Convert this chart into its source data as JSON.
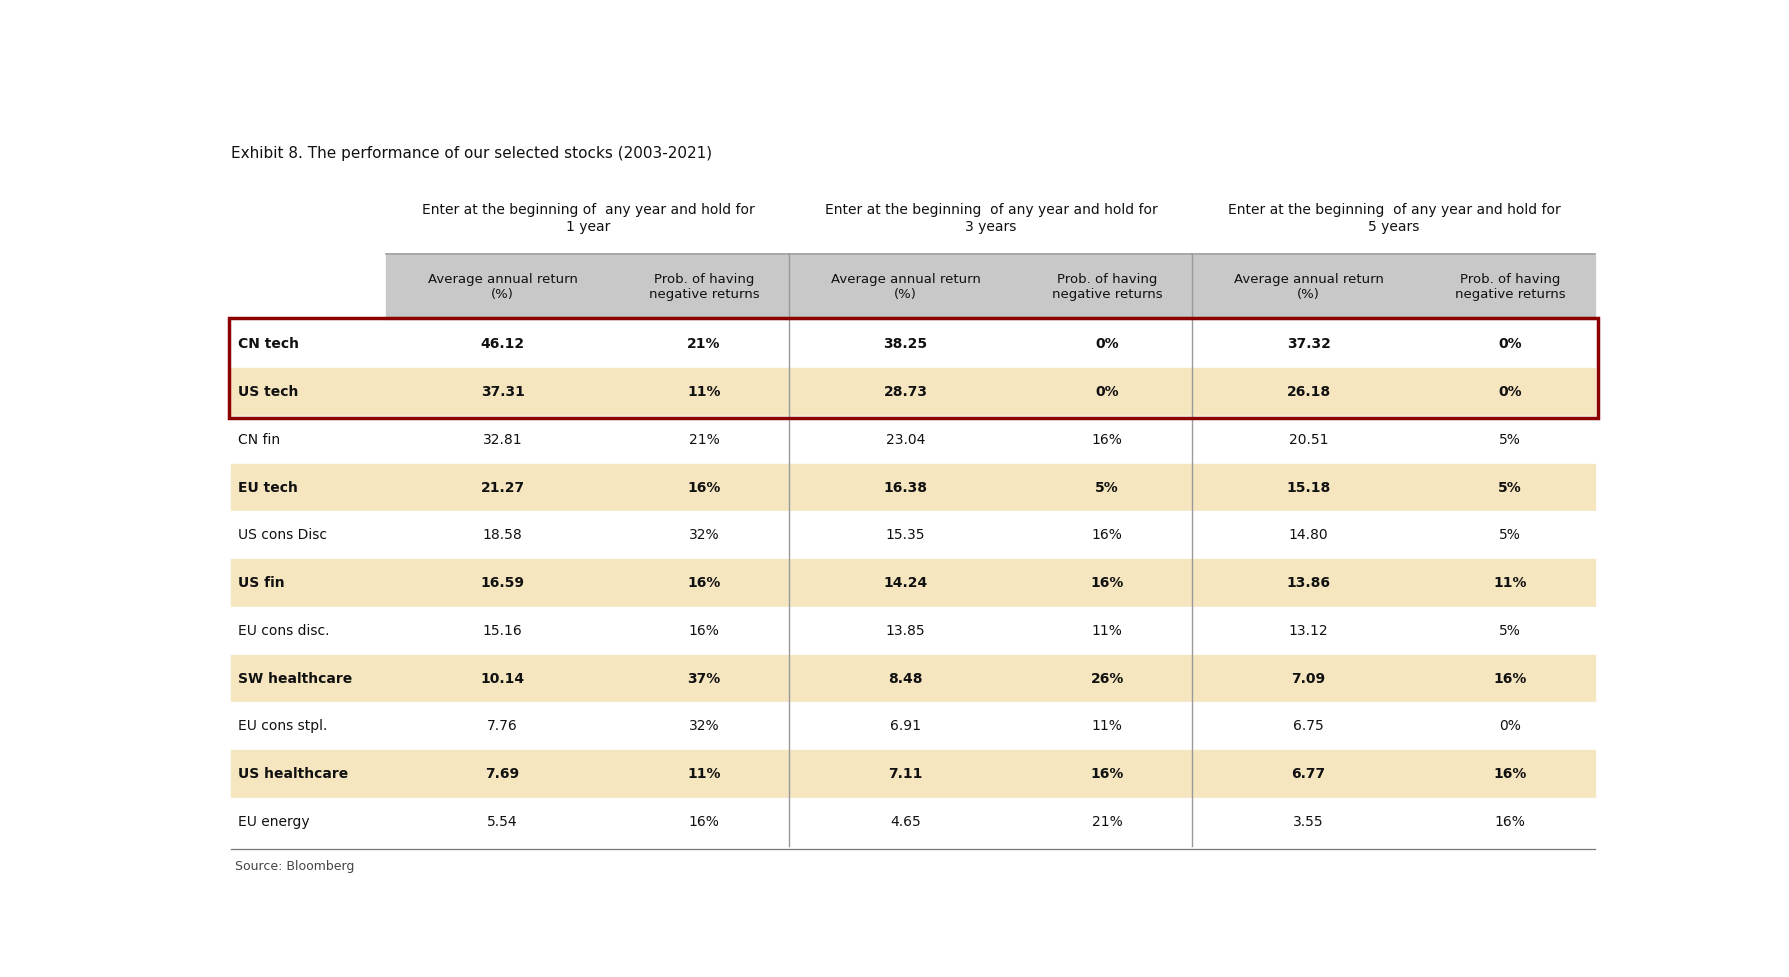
{
  "title": "Exhibit 8. The performance of our selected stocks (2003-2021)",
  "source": "Source: Bloomberg",
  "group_headers": [
    "Enter at the beginning of  any year and hold for\n1 year",
    "Enter at the beginning  of any year and hold for\n3 years",
    "Enter at the beginning  of any year and hold for\n5 years"
  ],
  "col_headers": [
    "Average annual return\n(%)",
    "Prob. of having\nnegative returns",
    "Average annual return\n(%)",
    "Prob. of having\nnegative returns",
    "Average annual return\n(%)",
    "Prob. of having\nnegative returns"
  ],
  "rows": [
    {
      "label": "CN tech",
      "bold": false,
      "highlight": "red_box",
      "bg": "#FFFFFF",
      "values": [
        "46.12",
        "21%",
        "38.25",
        "0%",
        "37.32",
        "0%"
      ]
    },
    {
      "label": "US tech",
      "bold": false,
      "highlight": "red_box",
      "bg": "#F5E6C0",
      "values": [
        "37.31",
        "11%",
        "28.73",
        "0%",
        "26.18",
        "0%"
      ]
    },
    {
      "label": "CN fin",
      "bold": false,
      "highlight": null,
      "bg": "#FFFFFF",
      "values": [
        "32.81",
        "21%",
        "23.04",
        "16%",
        "20.51",
        "5%"
      ]
    },
    {
      "label": "EU tech",
      "bold": false,
      "highlight": null,
      "bg": "#F5E6C0",
      "values": [
        "21.27",
        "16%",
        "16.38",
        "5%",
        "15.18",
        "5%"
      ]
    },
    {
      "label": "US cons Disc",
      "bold": false,
      "highlight": null,
      "bg": "#FFFFFF",
      "values": [
        "18.58",
        "32%",
        "15.35",
        "16%",
        "14.80",
        "5%"
      ]
    },
    {
      "label": "US fin",
      "bold": false,
      "highlight": null,
      "bg": "#F5E6C0",
      "values": [
        "16.59",
        "16%",
        "14.24",
        "16%",
        "13.86",
        "11%"
      ]
    },
    {
      "label": "EU cons disc.",
      "bold": false,
      "highlight": null,
      "bg": "#FFFFFF",
      "values": [
        "15.16",
        "16%",
        "13.85",
        "11%",
        "13.12",
        "5%"
      ]
    },
    {
      "label": "SW healthcare",
      "bold": false,
      "highlight": null,
      "bg": "#F5E6C0",
      "values": [
        "10.14",
        "37%",
        "8.48",
        "26%",
        "7.09",
        "16%"
      ]
    },
    {
      "label": "EU cons stpl.",
      "bold": false,
      "highlight": null,
      "bg": "#FFFFFF",
      "values": [
        "7.76",
        "32%",
        "6.91",
        "11%",
        "6.75",
        "0%"
      ]
    },
    {
      "label": "US healthcare",
      "bold": false,
      "highlight": null,
      "bg": "#F5E6C0",
      "values": [
        "7.69",
        "11%",
        "7.11",
        "16%",
        "6.77",
        "16%"
      ]
    },
    {
      "label": "EU energy",
      "bold": false,
      "highlight": null,
      "bg": "#FFFFFF",
      "values": [
        "5.54",
        "16%",
        "4.65",
        "21%",
        "3.55",
        "16%"
      ]
    }
  ],
  "bold_labels": [
    "CN tech",
    "US tech",
    "EU tech",
    "US fin",
    "SW healthcare",
    "US healthcare"
  ],
  "red_box_color": "#8B0000",
  "fig_bg": "#FFFFFF",
  "title_fontsize": 11,
  "group_header_fontsize": 10,
  "col_header_fontsize": 9.5,
  "cell_fontsize": 10,
  "source_fontsize": 9
}
